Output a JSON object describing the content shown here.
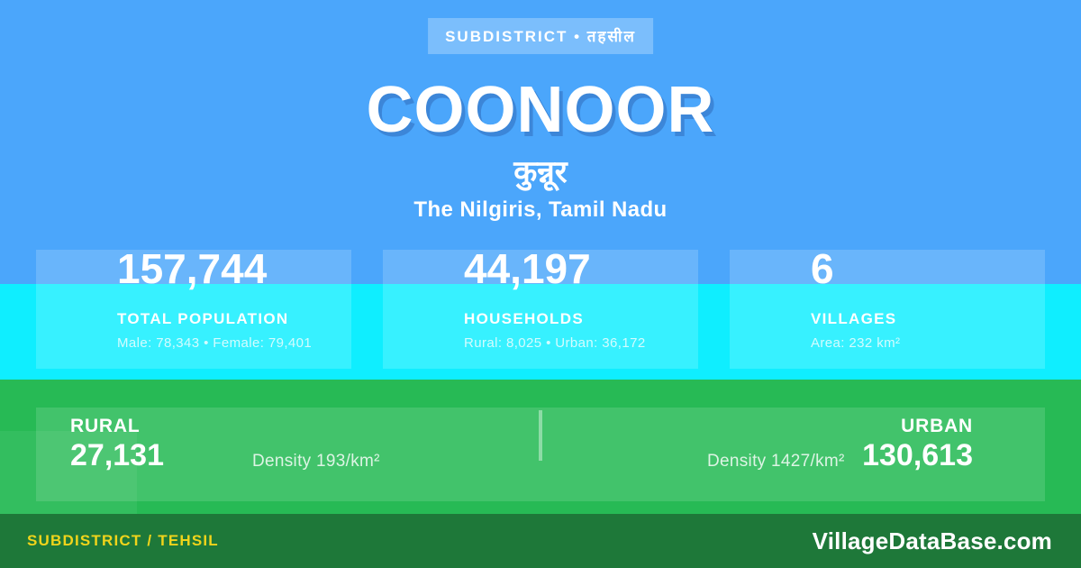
{
  "badge": {
    "label": "SUBDISTRICT • तहसील"
  },
  "header": {
    "title": "COONOOR",
    "native_name": "कुन्नूर",
    "region": "The Nilgiris, Tamil Nadu"
  },
  "stats": [
    {
      "value": "157,744",
      "label": "TOTAL POPULATION",
      "detail": "Male: 78,343 • Female: 79,401"
    },
    {
      "value": "44,197",
      "label": "HOUSEHOLDS",
      "detail": "Rural: 8,025 • Urban: 36,172"
    },
    {
      "value": "6",
      "label": "VILLAGES",
      "detail": "Area: 232 km²"
    }
  ],
  "breakdown": {
    "rural": {
      "label": "RURAL",
      "value": "27,131",
      "density": "Density 193/km²"
    },
    "urban": {
      "label": "URBAN",
      "value": "130,613",
      "density": "Density 1427/km²"
    }
  },
  "footer": {
    "type_label": "SUBDISTRICT / TEHSIL",
    "brand": "VillageDataBase.com"
  },
  "colors": {
    "background_blue": "#4BA6FB",
    "badge_blue": "#79BCFA",
    "title_shadow_blue": "#3C86D8",
    "cyan_band": "#0FEEFF",
    "green_main": "#27BA55",
    "green_footer": "#1E7839",
    "accent_yellow": "#F0D41B",
    "text_white": "#FFFFFF"
  }
}
